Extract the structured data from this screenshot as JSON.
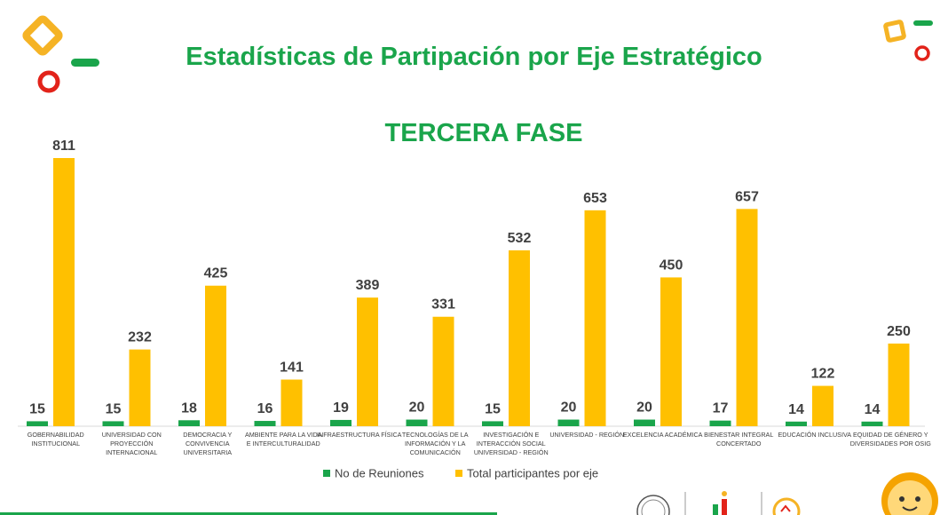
{
  "title": "Estadísticas de Partipación por Eje Estratégico",
  "subtitle": "TERCERA FASE",
  "colors": {
    "reuniones": "#1aa54b",
    "participantes": "#ffc000",
    "title": "#1aa54b"
  },
  "chart_data": {
    "type": "bar",
    "categories": [
      [
        "GOBERNABILIDAD",
        "INSTITUCIONAL"
      ],
      [
        "UNIVERSIDAD CON",
        "PROYECCIÓN",
        "INTERNACIONAL"
      ],
      [
        "DEMOCRACIA Y",
        "CONVIVENCIA",
        "UNIVERSITARIA"
      ],
      [
        "AMBIENTE PARA LA VIDA",
        "E INTERCULTURALIDAD"
      ],
      [
        "INFRAESTRUCTURA FÍSICA"
      ],
      [
        "TECNOLOGÍAS DE LA",
        "INFORMACIÓN Y LA",
        "COMUNICACIÓN"
      ],
      [
        "INVESTIGACIÓN E",
        "INTERACCIÓN SOCIAL",
        "UNIVERSIDAD - REGIÓN"
      ],
      [
        "UNIVERSIDAD - REGIÓN"
      ],
      [
        "EXCELENCIA ACADÉMICA"
      ],
      [
        "BIENESTAR INTEGRAL",
        "CONCERTADO"
      ],
      [
        "EDUCACIÓN INCLUSIVA"
      ],
      [
        "EQUIDAD DE GÉNERO Y",
        "DIVERSIDADES POR OSIG"
      ]
    ],
    "series": [
      {
        "name": "No de Reuniones",
        "values": [
          15,
          15,
          18,
          16,
          19,
          20,
          15,
          20,
          20,
          17,
          14,
          14
        ]
      },
      {
        "name": "Total participantes por eje",
        "values": [
          811,
          232,
          425,
          141,
          389,
          331,
          532,
          653,
          450,
          657,
          122,
          250
        ]
      }
    ],
    "ylim": [
      0,
      850
    ],
    "grid": false,
    "data_labels": true,
    "legend_position": "bottom-center"
  }
}
